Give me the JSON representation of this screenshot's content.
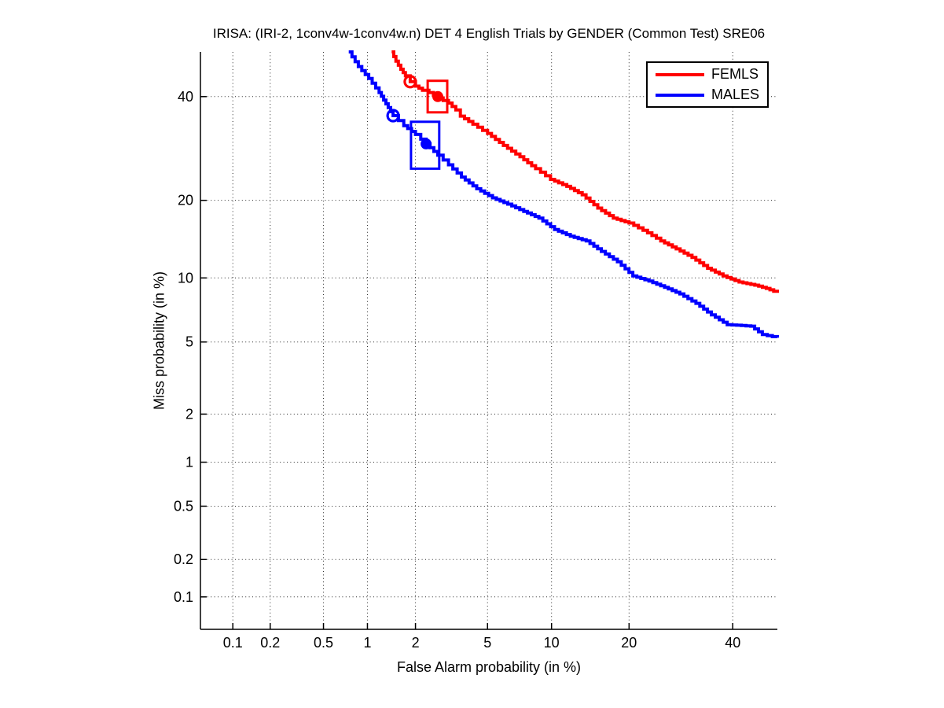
{
  "chart_data": {
    "type": "line",
    "chart_kind": "DET curve (both axes on normal-deviate / probit scale)",
    "title": "IRISA: (IRI-2, 1conv4w-1conv4w.n) DET 4 English Trials by GENDER (Common Test) SRE06",
    "xlabel": "False Alarm probability (in %)",
    "ylabel": "Miss probability (in %)",
    "x_ticks": [
      0.1,
      0.2,
      0.5,
      1,
      2,
      5,
      10,
      20,
      40
    ],
    "y_ticks": [
      0.1,
      0.2,
      0.5,
      1,
      2,
      5,
      10,
      20,
      40
    ],
    "x_tick_labels": [
      "0.1",
      "0.2",
      "0.5",
      "1",
      "2",
      "5",
      "10",
      "20",
      "40"
    ],
    "y_tick_labels": [
      "0.1",
      "0.2",
      "0.5",
      "1",
      "2",
      "5",
      "10",
      "20",
      "40"
    ],
    "axis_min_pct": 0.053,
    "axis_max_pct": 50,
    "grid": "dotted",
    "legend": {
      "position": "top-right",
      "entries": [
        {
          "label": "FEMLS",
          "color": "#ff0000"
        },
        {
          "label": "MALES",
          "color": "#0000ff"
        }
      ]
    },
    "series": [
      {
        "name": "FEMLS",
        "color": "#ff0000",
        "points_fa_miss_pct": [
          [
            1.43,
            50
          ],
          [
            1.52,
            47.9
          ],
          [
            1.63,
            46.1
          ],
          [
            1.74,
            44.6
          ],
          [
            1.86,
            43.3
          ],
          [
            2.0,
            42.3
          ],
          [
            2.2,
            41.4
          ],
          [
            2.4,
            40.9
          ],
          [
            2.7,
            39.7
          ],
          [
            3.1,
            38.6
          ],
          [
            3.4,
            37.1
          ],
          [
            3.6,
            35.8
          ],
          [
            4.2,
            34.1
          ],
          [
            5.0,
            32.2
          ],
          [
            6.0,
            29.8
          ],
          [
            7.2,
            27.6
          ],
          [
            8.5,
            25.4
          ],
          [
            9.9,
            23.5
          ],
          [
            11.6,
            22.3
          ],
          [
            13.4,
            20.9
          ],
          [
            15.4,
            18.8
          ],
          [
            17.6,
            17.3
          ],
          [
            20.0,
            16.6
          ],
          [
            22.3,
            15.6
          ],
          [
            25.4,
            14.2
          ],
          [
            28.3,
            13.2
          ],
          [
            31.4,
            12.2
          ],
          [
            34.6,
            11.0
          ],
          [
            37.9,
            10.2
          ],
          [
            41.4,
            9.6
          ],
          [
            44.9,
            9.3
          ],
          [
            47.5,
            9.0
          ],
          [
            50.0,
            8.6
          ]
        ],
        "markers": {
          "circle_fa_miss": [
            1.86,
            43.3
          ],
          "dot_fa_miss": [
            2.7,
            40.0
          ],
          "box_fa_range": [
            2.36,
            3.05
          ],
          "box_miss_range": [
            36.6,
            43.5
          ]
        }
      },
      {
        "name": "MALES",
        "color": "#0000ff",
        "points_fa_miss_pct": [
          [
            0.75,
            50
          ],
          [
            0.87,
            46.7
          ],
          [
            1.02,
            44.0
          ],
          [
            1.19,
            40.9
          ],
          [
            1.36,
            37.6
          ],
          [
            1.46,
            35.9
          ],
          [
            1.7,
            33.8
          ],
          [
            2.0,
            32.0
          ],
          [
            2.31,
            30.1
          ],
          [
            2.7,
            27.9
          ],
          [
            3.1,
            26.1
          ],
          [
            3.65,
            23.9
          ],
          [
            4.4,
            21.9
          ],
          [
            5.3,
            20.4
          ],
          [
            6.3,
            19.4
          ],
          [
            7.5,
            18.3
          ],
          [
            8.8,
            17.3
          ],
          [
            10.3,
            15.7
          ],
          [
            12.0,
            14.8
          ],
          [
            13.9,
            14.2
          ],
          [
            15.9,
            12.9
          ],
          [
            18.2,
            11.7
          ],
          [
            20.6,
            10.2
          ],
          [
            23.3,
            9.7
          ],
          [
            26.1,
            9.1
          ],
          [
            29.0,
            8.5
          ],
          [
            32.2,
            7.7
          ],
          [
            35.4,
            6.8
          ],
          [
            38.8,
            6.1
          ],
          [
            44.0,
            6.0
          ],
          [
            46.6,
            5.45
          ],
          [
            50.0,
            5.26
          ]
        ],
        "markers": {
          "circle_fa_miss": [
            1.46,
            35.9
          ],
          "dot_fa_miss": [
            2.31,
            30.1
          ],
          "box_fa_range": [
            1.88,
            2.75
          ],
          "box_miss_range": [
            25.4,
            34.6
          ]
        }
      }
    ]
  }
}
